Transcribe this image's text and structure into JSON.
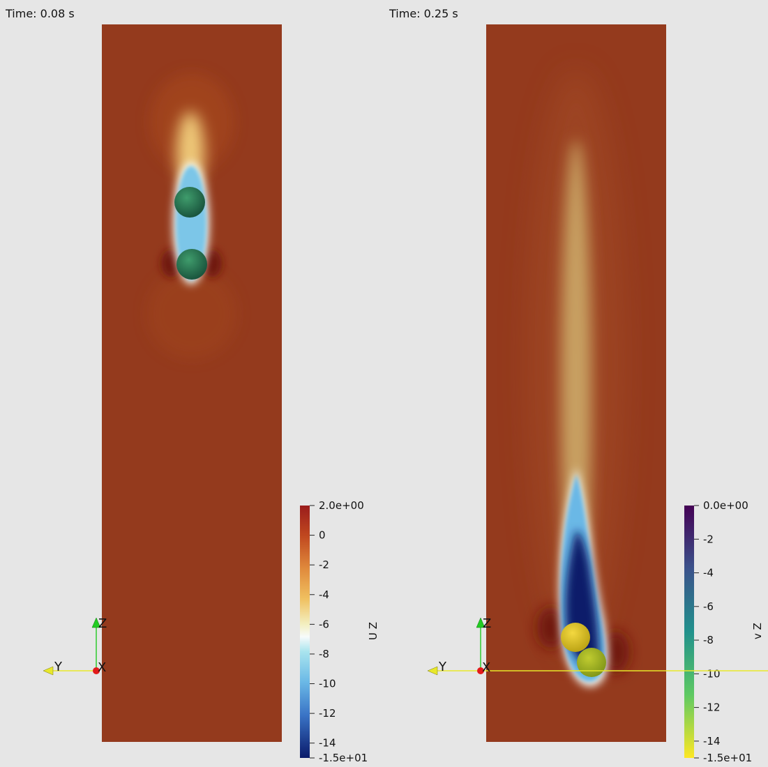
{
  "panels": [
    {
      "time": "Time: 0.08 s",
      "colorbar": {
        "title": "U Z",
        "range": [
          -15,
          2
        ],
        "ticks": [
          {
            "value": 2,
            "label": "2.0e+00"
          },
          0,
          -2,
          -4,
          -6,
          -8,
          -10,
          -12,
          -14,
          {
            "value": -15,
            "label": "-1.5e+01"
          }
        ]
      },
      "axes": {
        "z": "Z",
        "y": "Y",
        "x": "X"
      }
    },
    {
      "time": "Time: 0.25 s",
      "colorbar": {
        "title": "v Z",
        "range": [
          -15,
          0
        ],
        "ticks": [
          {
            "value": 0,
            "label": "0.0e+00"
          },
          -2,
          -4,
          -6,
          -8,
          -10,
          -12,
          -14,
          {
            "value": -15,
            "label": "-1.5e+01"
          }
        ]
      },
      "axes": {
        "z": "Z",
        "y": "Y",
        "x": "X"
      }
    }
  ]
}
